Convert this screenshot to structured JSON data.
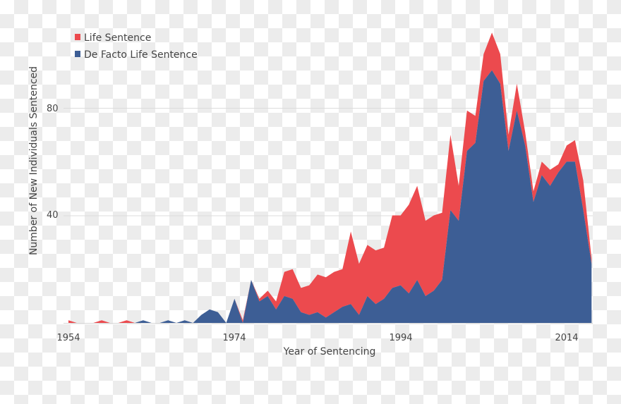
{
  "chart_data": {
    "type": "area",
    "stacked": true,
    "title": "",
    "xlabel": "Year of Sentencing",
    "ylabel": "Number of New Individuals Sentenced",
    "xlim": [
      1954,
      2017
    ],
    "ylim": [
      0,
      110
    ],
    "x_ticks": [
      "1954",
      "1974",
      "1994",
      "2014"
    ],
    "y_ticks": [
      "40",
      "80"
    ],
    "grid": "horizontal",
    "legend_position": "top-left",
    "x": [
      1954,
      1955,
      1956,
      1957,
      1958,
      1959,
      1960,
      1961,
      1962,
      1963,
      1964,
      1965,
      1966,
      1967,
      1968,
      1969,
      1970,
      1971,
      1972,
      1973,
      1974,
      1975,
      1976,
      1977,
      1978,
      1979,
      1980,
      1981,
      1982,
      1983,
      1984,
      1985,
      1986,
      1987,
      1988,
      1989,
      1990,
      1991,
      1992,
      1993,
      1994,
      1995,
      1996,
      1997,
      1998,
      1999,
      2000,
      2001,
      2002,
      2003,
      2004,
      2005,
      2006,
      2007,
      2008,
      2009,
      2010,
      2011,
      2012,
      2013,
      2014,
      2015,
      2016,
      2017
    ],
    "series": [
      {
        "name": "De Facto Life Sentence",
        "color": "#3d5e95",
        "values": [
          0,
          0,
          0,
          0,
          0,
          0,
          0,
          0,
          0,
          1,
          0,
          0,
          1,
          0,
          1,
          0,
          3,
          5,
          4,
          0,
          9,
          0,
          16,
          8,
          10,
          5,
          10,
          9,
          4,
          3,
          4,
          2,
          4,
          6,
          7,
          3,
          10,
          7,
          9,
          13,
          14,
          11,
          16,
          10,
          12,
          16,
          42,
          38,
          64,
          67,
          90,
          94,
          89,
          64,
          79,
          66,
          45,
          55,
          51,
          56,
          60,
          60,
          42,
          22
        ]
      },
      {
        "name": "Life Sentence",
        "color": "#ec4a4e",
        "values": [
          1,
          0,
          0,
          0,
          1,
          0,
          0,
          1,
          0,
          0,
          0,
          0,
          0,
          0,
          0,
          0,
          0,
          0,
          0,
          0,
          0,
          1,
          0,
          1,
          2,
          3,
          9,
          11,
          9,
          11,
          14,
          15,
          15,
          14,
          27,
          19,
          19,
          20,
          19,
          27,
          26,
          33,
          35,
          28,
          28,
          25,
          28,
          13,
          15,
          10,
          10,
          14,
          11,
          6,
          10,
          5,
          4,
          5,
          6,
          3,
          6,
          8,
          11,
          2
        ]
      }
    ]
  },
  "legend": {
    "items": [
      {
        "label": "Life Sentence",
        "color": "#ec4a4e"
      },
      {
        "label": "De Facto Life Sentence",
        "color": "#3d5e95"
      }
    ]
  }
}
